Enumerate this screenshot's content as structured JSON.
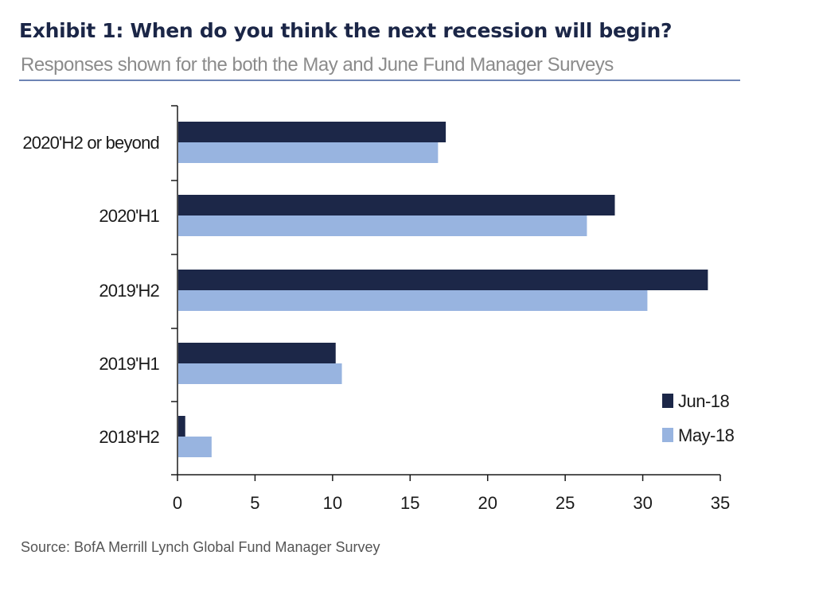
{
  "header": {
    "title": "Exhibit 1: When do you think the next recession will begin?",
    "subtitle": "Responses shown for the both the May and June Fund Manager Surveys"
  },
  "footer": {
    "source": "Source:  BofA Merrill Lynch Global Fund Manager Survey"
  },
  "colors": {
    "title": "#1b2647",
    "rule": "#6d84b4",
    "jun": "#1c2748",
    "may": "#98b4e0",
    "axis": "#1a1a1a"
  },
  "chart_data": {
    "type": "bar",
    "orientation": "horizontal",
    "categories": [
      "2020'H2 or beyond",
      "2020'H1",
      "2019'H2",
      "2019'H1",
      "2018'H2"
    ],
    "series": [
      {
        "name": "Jun-18",
        "values": [
          17.3,
          28.2,
          34.2,
          10.2,
          0.5
        ]
      },
      {
        "name": "May-18",
        "values": [
          16.8,
          26.4,
          30.3,
          10.6,
          2.2
        ]
      }
    ],
    "xlim": [
      0,
      35
    ],
    "xticks": [
      0,
      5,
      10,
      15,
      20,
      25,
      30,
      35
    ],
    "grid": false,
    "legend_position": "bottom-right"
  }
}
